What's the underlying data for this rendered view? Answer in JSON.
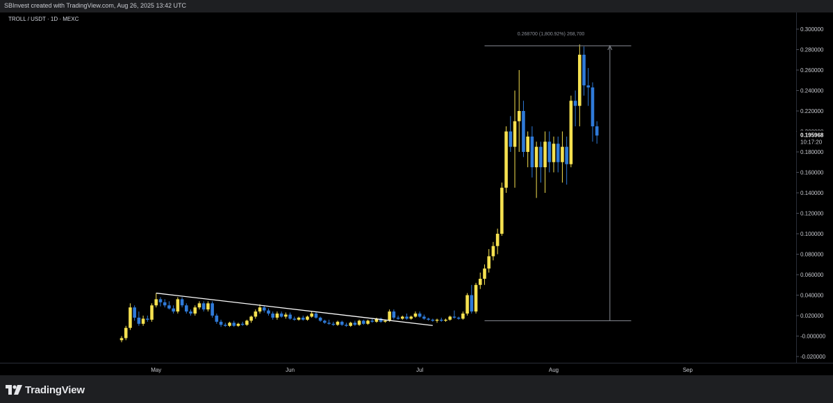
{
  "header": {
    "created_text": "SBInvest created with TradingView.com, Aug 26, 2025 13:42 UTC"
  },
  "chart": {
    "symbol_label": "TROLL / USDT · 1D · MEXC"
  },
  "price_axis": {
    "ticks": [
      "0.300000",
      "0.280000",
      "0.260000",
      "0.240000",
      "0.220000",
      "0.200000",
      "0.180000",
      "0.160000",
      "0.140000",
      "0.120000",
      "0.100000",
      "0.080000",
      "0.060000",
      "0.040000",
      "0.020000",
      "-0.000000",
      "-0.020000"
    ],
    "current_price": "0.195968",
    "countdown": "10:17:20"
  },
  "time_axis": {
    "labels": [
      "May",
      "Jun",
      "Jul",
      "Aug",
      "Sep"
    ]
  },
  "measure_label": "0.268700 (1,800.92%) 268,700",
  "footer": {
    "brand": "TradingView"
  },
  "colors": {
    "up": "#f5e150",
    "down": "#2f7ad8",
    "trendline": "#ffffff",
    "measure": "#8a8e97",
    "bg": "#000000"
  },
  "chart_data": {
    "type": "candlestick",
    "title": "TROLL / USDT · 1D · MEXC",
    "x_unit": "trading day",
    "ylim": [
      -0.025,
      0.305
    ],
    "grid": false,
    "x_labels": [
      {
        "label": "May",
        "day": 8
      },
      {
        "label": "Jun",
        "day": 39
      },
      {
        "label": "Jul",
        "day": 69
      },
      {
        "label": "Aug",
        "day": 100
      },
      {
        "label": "Sep",
        "day": 131
      }
    ],
    "candles": [
      {
        "o": -0.004,
        "h": 0.0,
        "l": -0.006,
        "c": -0.002
      },
      {
        "o": -0.002,
        "h": 0.01,
        "l": -0.004,
        "c": 0.008
      },
      {
        "o": 0.008,
        "h": 0.032,
        "l": 0.006,
        "c": 0.028
      },
      {
        "o": 0.028,
        "h": 0.03,
        "l": 0.015,
        "c": 0.018
      },
      {
        "o": 0.018,
        "h": 0.024,
        "l": 0.01,
        "c": 0.012
      },
      {
        "o": 0.012,
        "h": 0.02,
        "l": 0.01,
        "c": 0.017
      },
      {
        "o": 0.017,
        "h": 0.02,
        "l": 0.014,
        "c": 0.016
      },
      {
        "o": 0.016,
        "h": 0.032,
        "l": 0.014,
        "c": 0.03
      },
      {
        "o": 0.03,
        "h": 0.042,
        "l": 0.028,
        "c": 0.036
      },
      {
        "o": 0.036,
        "h": 0.038,
        "l": 0.029,
        "c": 0.033
      },
      {
        "o": 0.033,
        "h": 0.036,
        "l": 0.028,
        "c": 0.03
      },
      {
        "o": 0.03,
        "h": 0.034,
        "l": 0.026,
        "c": 0.027
      },
      {
        "o": 0.027,
        "h": 0.03,
        "l": 0.022,
        "c": 0.024
      },
      {
        "o": 0.024,
        "h": 0.038,
        "l": 0.022,
        "c": 0.036
      },
      {
        "o": 0.036,
        "h": 0.038,
        "l": 0.028,
        "c": 0.03
      },
      {
        "o": 0.03,
        "h": 0.032,
        "l": 0.022,
        "c": 0.024
      },
      {
        "o": 0.024,
        "h": 0.026,
        "l": 0.02,
        "c": 0.022
      },
      {
        "o": 0.022,
        "h": 0.03,
        "l": 0.02,
        "c": 0.028
      },
      {
        "o": 0.028,
        "h": 0.034,
        "l": 0.026,
        "c": 0.032
      },
      {
        "o": 0.032,
        "h": 0.034,
        "l": 0.024,
        "c": 0.026
      },
      {
        "o": 0.026,
        "h": 0.034,
        "l": 0.024,
        "c": 0.032
      },
      {
        "o": 0.032,
        "h": 0.034,
        "l": 0.018,
        "c": 0.02
      },
      {
        "o": 0.02,
        "h": 0.022,
        "l": 0.012,
        "c": 0.014
      },
      {
        "o": 0.014,
        "h": 0.016,
        "l": 0.009,
        "c": 0.011
      },
      {
        "o": 0.011,
        "h": 0.013,
        "l": 0.009,
        "c": 0.01
      },
      {
        "o": 0.01,
        "h": 0.014,
        "l": 0.009,
        "c": 0.013
      },
      {
        "o": 0.013,
        "h": 0.015,
        "l": 0.009,
        "c": 0.01
      },
      {
        "o": 0.01,
        "h": 0.013,
        "l": 0.009,
        "c": 0.012
      },
      {
        "o": 0.012,
        "h": 0.014,
        "l": 0.01,
        "c": 0.011
      },
      {
        "o": 0.011,
        "h": 0.016,
        "l": 0.01,
        "c": 0.015
      },
      {
        "o": 0.015,
        "h": 0.02,
        "l": 0.013,
        "c": 0.019
      },
      {
        "o": 0.019,
        "h": 0.026,
        "l": 0.017,
        "c": 0.024
      },
      {
        "o": 0.024,
        "h": 0.031,
        "l": 0.022,
        "c": 0.028
      },
      {
        "o": 0.028,
        "h": 0.03,
        "l": 0.023,
        "c": 0.025
      },
      {
        "o": 0.025,
        "h": 0.027,
        "l": 0.02,
        "c": 0.022
      },
      {
        "o": 0.022,
        "h": 0.024,
        "l": 0.016,
        "c": 0.018
      },
      {
        "o": 0.018,
        "h": 0.024,
        "l": 0.016,
        "c": 0.022
      },
      {
        "o": 0.022,
        "h": 0.024,
        "l": 0.018,
        "c": 0.019
      },
      {
        "o": 0.019,
        "h": 0.023,
        "l": 0.017,
        "c": 0.021
      },
      {
        "o": 0.021,
        "h": 0.023,
        "l": 0.016,
        "c": 0.017
      },
      {
        "o": 0.017,
        "h": 0.019,
        "l": 0.015,
        "c": 0.016
      },
      {
        "o": 0.016,
        "h": 0.019,
        "l": 0.015,
        "c": 0.018
      },
      {
        "o": 0.018,
        "h": 0.02,
        "l": 0.015,
        "c": 0.016
      },
      {
        "o": 0.016,
        "h": 0.02,
        "l": 0.015,
        "c": 0.019
      },
      {
        "o": 0.019,
        "h": 0.024,
        "l": 0.018,
        "c": 0.022
      },
      {
        "o": 0.022,
        "h": 0.024,
        "l": 0.017,
        "c": 0.018
      },
      {
        "o": 0.018,
        "h": 0.019,
        "l": 0.014,
        "c": 0.015
      },
      {
        "o": 0.015,
        "h": 0.016,
        "l": 0.012,
        "c": 0.013
      },
      {
        "o": 0.013,
        "h": 0.016,
        "l": 0.011,
        "c": 0.012
      },
      {
        "o": 0.012,
        "h": 0.014,
        "l": 0.01,
        "c": 0.011
      },
      {
        "o": 0.011,
        "h": 0.015,
        "l": 0.01,
        "c": 0.014
      },
      {
        "o": 0.014,
        "h": 0.015,
        "l": 0.01,
        "c": 0.011
      },
      {
        "o": 0.011,
        "h": 0.013,
        "l": 0.009,
        "c": 0.01
      },
      {
        "o": 0.01,
        "h": 0.014,
        "l": 0.009,
        "c": 0.013
      },
      {
        "o": 0.013,
        "h": 0.015,
        "l": 0.01,
        "c": 0.011
      },
      {
        "o": 0.011,
        "h": 0.016,
        "l": 0.01,
        "c": 0.015
      },
      {
        "o": 0.015,
        "h": 0.016,
        "l": 0.011,
        "c": 0.012
      },
      {
        "o": 0.012,
        "h": 0.016,
        "l": 0.011,
        "c": 0.015
      },
      {
        "o": 0.015,
        "h": 0.017,
        "l": 0.013,
        "c": 0.014
      },
      {
        "o": 0.014,
        "h": 0.018,
        "l": 0.013,
        "c": 0.017
      },
      {
        "o": 0.017,
        "h": 0.018,
        "l": 0.013,
        "c": 0.014
      },
      {
        "o": 0.014,
        "h": 0.016,
        "l": 0.013,
        "c": 0.015
      },
      {
        "o": 0.015,
        "h": 0.026,
        "l": 0.014,
        "c": 0.024
      },
      {
        "o": 0.024,
        "h": 0.026,
        "l": 0.016,
        "c": 0.018
      },
      {
        "o": 0.018,
        "h": 0.02,
        "l": 0.016,
        "c": 0.017
      },
      {
        "o": 0.017,
        "h": 0.02,
        "l": 0.016,
        "c": 0.019
      },
      {
        "o": 0.019,
        "h": 0.022,
        "l": 0.016,
        "c": 0.017
      },
      {
        "o": 0.017,
        "h": 0.02,
        "l": 0.016,
        "c": 0.019
      },
      {
        "o": 0.019,
        "h": 0.024,
        "l": 0.018,
        "c": 0.022
      },
      {
        "o": 0.022,
        "h": 0.024,
        "l": 0.018,
        "c": 0.019
      },
      {
        "o": 0.019,
        "h": 0.021,
        "l": 0.016,
        "c": 0.017
      },
      {
        "o": 0.017,
        "h": 0.018,
        "l": 0.015,
        "c": 0.016
      },
      {
        "o": 0.016,
        "h": 0.017,
        "l": 0.014,
        "c": 0.015
      },
      {
        "o": 0.015,
        "h": 0.017,
        "l": 0.013,
        "c": 0.016
      },
      {
        "o": 0.016,
        "h": 0.018,
        "l": 0.014,
        "c": 0.015
      },
      {
        "o": 0.015,
        "h": 0.017,
        "l": 0.014,
        "c": 0.016
      },
      {
        "o": 0.016,
        "h": 0.02,
        "l": 0.015,
        "c": 0.019
      },
      {
        "o": 0.019,
        "h": 0.025,
        "l": 0.017,
        "c": 0.018
      },
      {
        "o": 0.018,
        "h": 0.019,
        "l": 0.016,
        "c": 0.017
      },
      {
        "o": 0.017,
        "h": 0.024,
        "l": 0.016,
        "c": 0.022
      },
      {
        "o": 0.022,
        "h": 0.042,
        "l": 0.02,
        "c": 0.04
      },
      {
        "o": 0.04,
        "h": 0.05,
        "l": 0.022,
        "c": 0.024
      },
      {
        "o": 0.024,
        "h": 0.052,
        "l": 0.022,
        "c": 0.05
      },
      {
        "o": 0.05,
        "h": 0.062,
        "l": 0.046,
        "c": 0.056
      },
      {
        "o": 0.056,
        "h": 0.07,
        "l": 0.05,
        "c": 0.066
      },
      {
        "o": 0.066,
        "h": 0.085,
        "l": 0.062,
        "c": 0.078
      },
      {
        "o": 0.078,
        "h": 0.092,
        "l": 0.074,
        "c": 0.088
      },
      {
        "o": 0.088,
        "h": 0.105,
        "l": 0.08,
        "c": 0.1
      },
      {
        "o": 0.1,
        "h": 0.15,
        "l": 0.098,
        "c": 0.145
      },
      {
        "o": 0.145,
        "h": 0.205,
        "l": 0.14,
        "c": 0.2
      },
      {
        "o": 0.2,
        "h": 0.215,
        "l": 0.18,
        "c": 0.185
      },
      {
        "o": 0.185,
        "h": 0.24,
        "l": 0.145,
        "c": 0.21
      },
      {
        "o": 0.21,
        "h": 0.26,
        "l": 0.18,
        "c": 0.22
      },
      {
        "o": 0.22,
        "h": 0.23,
        "l": 0.175,
        "c": 0.18
      },
      {
        "o": 0.18,
        "h": 0.2,
        "l": 0.165,
        "c": 0.195
      },
      {
        "o": 0.195,
        "h": 0.205,
        "l": 0.155,
        "c": 0.165
      },
      {
        "o": 0.165,
        "h": 0.19,
        "l": 0.135,
        "c": 0.185
      },
      {
        "o": 0.185,
        "h": 0.19,
        "l": 0.15,
        "c": 0.165
      },
      {
        "o": 0.165,
        "h": 0.2,
        "l": 0.14,
        "c": 0.19
      },
      {
        "o": 0.19,
        "h": 0.2,
        "l": 0.16,
        "c": 0.17
      },
      {
        "o": 0.17,
        "h": 0.195,
        "l": 0.16,
        "c": 0.188
      },
      {
        "o": 0.188,
        "h": 0.195,
        "l": 0.16,
        "c": 0.17
      },
      {
        "o": 0.17,
        "h": 0.2,
        "l": 0.15,
        "c": 0.185
      },
      {
        "o": 0.185,
        "h": 0.195,
        "l": 0.148,
        "c": 0.168
      },
      {
        "o": 0.168,
        "h": 0.235,
        "l": 0.165,
        "c": 0.23
      },
      {
        "o": 0.23,
        "h": 0.24,
        "l": 0.205,
        "c": 0.225
      },
      {
        "o": 0.225,
        "h": 0.285,
        "l": 0.205,
        "c": 0.275
      },
      {
        "o": 0.275,
        "h": 0.283,
        "l": 0.235,
        "c": 0.245
      },
      {
        "o": 0.245,
        "h": 0.262,
        "l": 0.225,
        "c": 0.243
      },
      {
        "o": 0.243,
        "h": 0.248,
        "l": 0.19,
        "c": 0.205
      },
      {
        "o": 0.205,
        "h": 0.21,
        "l": 0.188,
        "c": 0.196
      }
    ],
    "trendline": {
      "from": {
        "day": 8,
        "price": 0.042
      },
      "to": {
        "day": 72,
        "price": 0.011
      }
    },
    "measure": {
      "from_day": 84,
      "to_day": 116,
      "low": 0.015,
      "high": 0.2837,
      "label": "0.268700 (1,800.92%) 268,700"
    }
  }
}
